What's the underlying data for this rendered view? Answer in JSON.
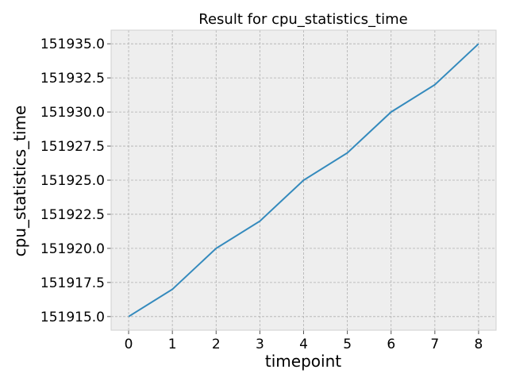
{
  "chart_data": {
    "type": "line",
    "title": "Result for cpu_statistics_time",
    "xlabel": "timepoint",
    "ylabel": "cpu_statistics_time",
    "x": [
      0,
      1,
      2,
      3,
      4,
      5,
      6,
      7,
      8
    ],
    "series": [
      {
        "values": [
          151915.0,
          151917.0,
          151920.0,
          151922.0,
          151925.0,
          151927.0,
          151930.0,
          151932.0,
          151935.0
        ]
      }
    ],
    "xticks": [
      "0",
      "1",
      "2",
      "3",
      "4",
      "5",
      "6",
      "7",
      "8"
    ],
    "yticks": [
      "151915.0",
      "151917.5",
      "151920.0",
      "151922.5",
      "151925.0",
      "151927.5",
      "151930.0",
      "151932.5",
      "151935.0"
    ],
    "xlim": [
      -0.4,
      8.4
    ],
    "ylim": [
      151914.0,
      151936.0
    ],
    "grid": true,
    "colors": {
      "background": "#eeeeee",
      "line": "#348abd"
    }
  }
}
